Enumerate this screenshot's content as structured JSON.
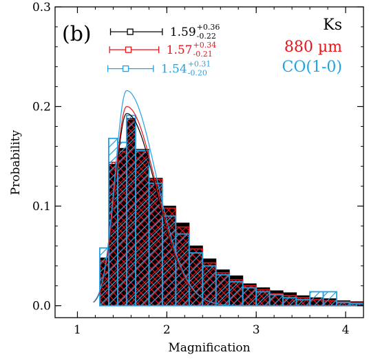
{
  "chart_data": {
    "type": "bar",
    "panel_label": "(b)",
    "xlabel": "Magnification",
    "ylabel": "Probability",
    "xlim": [
      0.75,
      4.2
    ],
    "ylim": [
      -0.012,
      0.3
    ],
    "x_ticks": [
      1,
      2,
      3,
      4
    ],
    "x_tick_labels": [
      "1",
      "2",
      "3",
      "4"
    ],
    "y_ticks": [
      0.0,
      0.1,
      0.2,
      0.3
    ],
    "y_tick_labels": [
      "0.0",
      "0.1",
      "0.2",
      "0.3"
    ],
    "bin_edges": [
      0.95,
      1.05,
      1.15,
      1.25,
      1.35,
      1.45,
      1.55,
      1.65,
      1.8,
      1.95,
      2.1,
      2.25,
      2.4,
      2.55,
      2.7,
      2.85,
      3.0,
      3.15,
      3.3,
      3.45,
      3.6,
      3.75,
      3.9,
      4.05,
      4.2
    ],
    "series": [
      {
        "name": "Ks",
        "color": "#000000",
        "hatch": "solid",
        "values": [
          0.0,
          0.0,
          0.0,
          0.048,
          0.142,
          0.158,
          0.188,
          0.157,
          0.128,
          0.1,
          0.083,
          0.06,
          0.047,
          0.036,
          0.03,
          0.022,
          0.018,
          0.015,
          0.013,
          0.01,
          0.008,
          0.007,
          0.005,
          0.004
        ],
        "fit_peak": 0.193
      },
      {
        "name": "880 µm",
        "color": "#e8141a",
        "hatch": "cross",
        "values": [
          0.0,
          0.0,
          0.0,
          0.045,
          0.144,
          0.155,
          0.187,
          0.155,
          0.127,
          0.098,
          0.079,
          0.057,
          0.043,
          0.033,
          0.026,
          0.02,
          0.016,
          0.012,
          0.01,
          0.008,
          0.006,
          0.005,
          0.004,
          0.003
        ],
        "fit_peak": 0.2
      },
      {
        "name": "CO(1-0)",
        "color": "#1fa2e6",
        "hatch": "diagonal",
        "values": [
          0.0,
          0.0,
          0.0,
          0.058,
          0.168,
          0.164,
          0.191,
          0.156,
          0.123,
          0.09,
          0.072,
          0.053,
          0.04,
          0.031,
          0.024,
          0.018,
          0.014,
          0.011,
          0.008,
          0.006,
          0.014,
          0.014,
          0.003,
          0.002
        ],
        "fit_peak": 0.216
      }
    ],
    "fit": {
      "mode": 1.55,
      "width_left": 0.13,
      "width_right": 0.33,
      "start": 1.18,
      "end": 4.2
    },
    "error_bars": [
      {
        "series": "Ks",
        "color": "#000000",
        "center": 1.59,
        "plus": "+0.36",
        "minus": "-0.22",
        "value": "1.59",
        "lo": 1.37,
        "hi": 1.95,
        "y": 0.275
      },
      {
        "series": "880 µm",
        "color": "#e8141a",
        "center": 1.57,
        "plus": "+0.34",
        "minus": "-0.21",
        "value": "1.57",
        "lo": 1.36,
        "hi": 1.91,
        "y": 0.257
      },
      {
        "series": "CO(1-0)",
        "color": "#1fa2e6",
        "center": 1.54,
        "plus": "+0.31",
        "minus": "-0.20",
        "value": "1.54",
        "lo": 1.34,
        "hi": 1.85,
        "y": 0.238
      }
    ],
    "legend": {
      "placement": "top-right",
      "entries": [
        {
          "text": "Ks",
          "color": "#000000"
        },
        {
          "text": "880 µm",
          "color": "#e8141a"
        },
        {
          "text": "CO(1-0)",
          "color": "#1fa2e6"
        }
      ]
    },
    "grid": false
  }
}
